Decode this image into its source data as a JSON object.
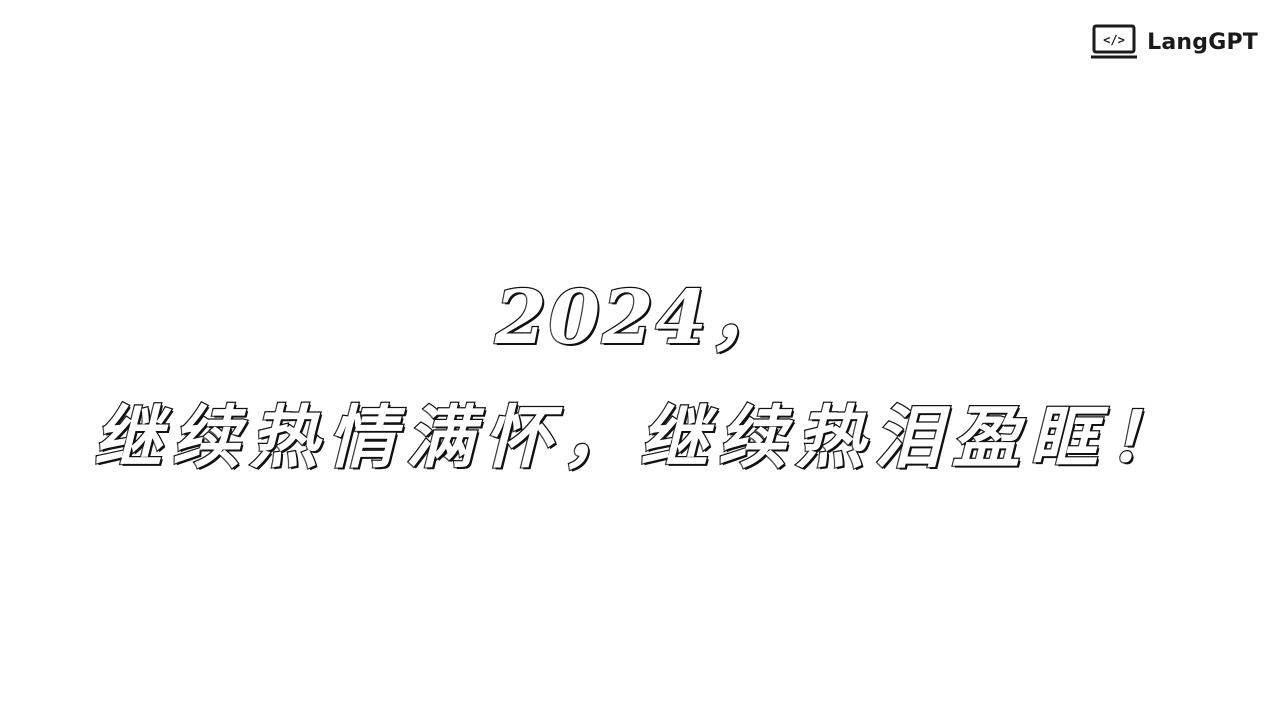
{
  "brand": {
    "name": "LangGPT",
    "icon": "code-tag-laptop-icon",
    "icon_glyph": "</>"
  },
  "headline": {
    "line1": "2024，",
    "line2": "继续热情满怀，继续热泪盈眶！"
  },
  "colors": {
    "background": "#ffffff",
    "text_outline": "#111111",
    "text_fill": "#ffffff"
  }
}
